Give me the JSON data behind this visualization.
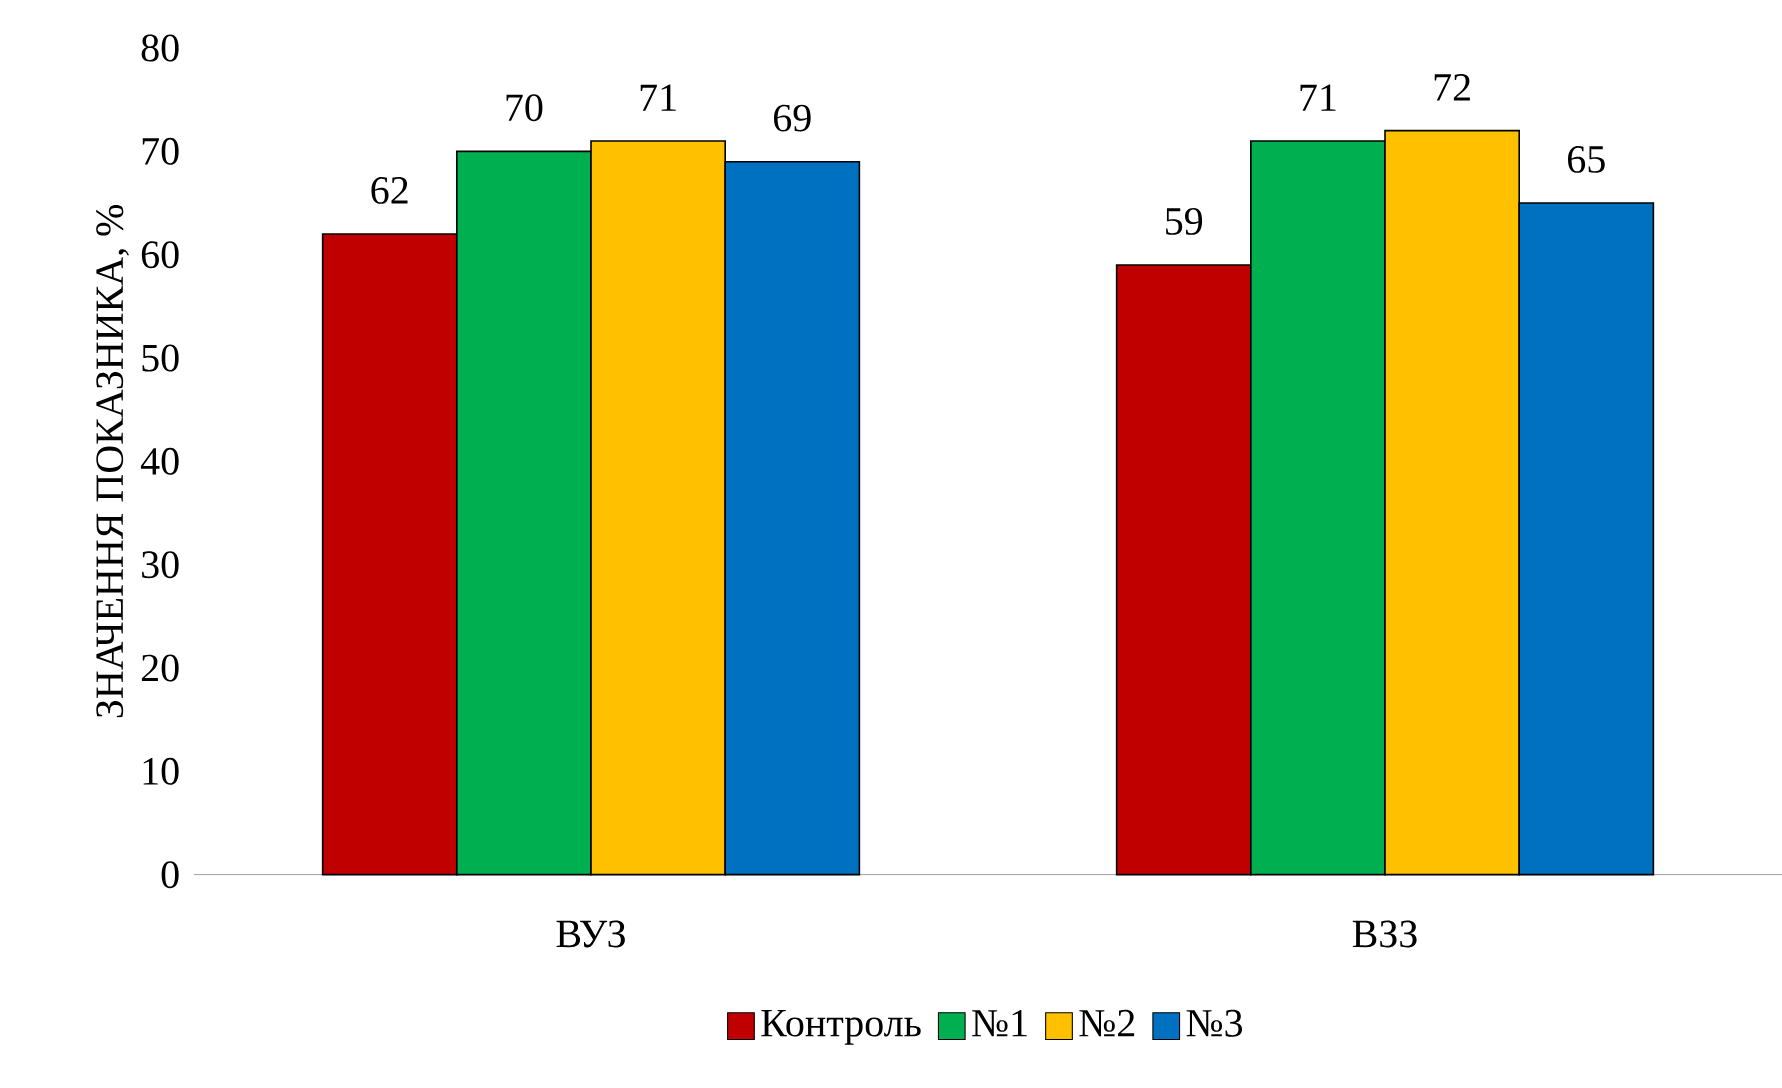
{
  "chart_data": {
    "type": "bar",
    "ylabel": "ЗНАЧЕННЯ ПОКАЗНИКА, %",
    "categories": [
      "ВУЗ",
      "ВЗЗ"
    ],
    "series": [
      {
        "name": "Контроль",
        "color": "#c00000",
        "values": [
          62,
          59
        ]
      },
      {
        "name": "№1",
        "color": "#00b050",
        "values": [
          70,
          71
        ]
      },
      {
        "name": "№2",
        "color": "#ffc000",
        "values": [
          71,
          72
        ]
      },
      {
        "name": "№3",
        "color": "#0070c0",
        "values": [
          69,
          65
        ]
      }
    ],
    "ylim": [
      0,
      80
    ],
    "yticks": [
      0,
      10,
      20,
      30,
      40,
      50,
      60,
      70,
      80
    ],
    "data_labels": true,
    "legend": "bottom",
    "grid": false
  }
}
